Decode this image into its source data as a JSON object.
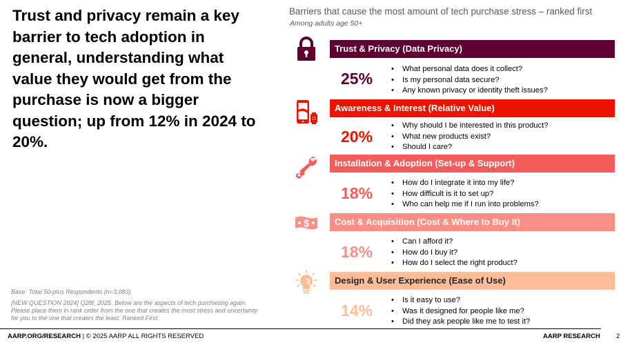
{
  "headline": "Trust and privacy remain a key barrier to tech adoption in general, understanding what value they would get from the purchase is now a bigger question; up from 12% in 2024 to 20%.",
  "right_panel": {
    "title": "Barriers that cause the most amount of tech purchase stress – ranked first",
    "subtitle": "Among adults age 50+",
    "barriers": [
      {
        "icon": "lock-icon",
        "color": "#5f0032",
        "label": "Trust & Privacy (Data Privacy)",
        "percent": "25%",
        "bullets": [
          "What personal data does it collect?",
          "Is my personal data secure?",
          "Any known privacy or identity theft issues?"
        ]
      },
      {
        "icon": "phone-watch-icon",
        "color": "#ec1300",
        "label": "Awareness & Interest (Relative Value)",
        "percent": "20%",
        "bullets": [
          "Why should I be interested in this product?",
          "What new products exist?",
          "Should I care?"
        ]
      },
      {
        "icon": "wrench-icon",
        "color": "#f45b5b",
        "label": "Installation & Adoption (Set-up & Support)",
        "percent": "18%",
        "bullets": [
          "How do I integrate it into my life?",
          "How difficult is it to set up?",
          "Who can help me if I run into problems?"
        ]
      },
      {
        "icon": "money-bill-icon",
        "color": "#fb8f86",
        "label": "Cost & Acquisition (Cost & Where to Buy It)",
        "percent": "18%",
        "bullets": [
          "Can I afford it?",
          "How do I buy it?",
          "How do I select the right product?"
        ]
      },
      {
        "icon": "lightbulb-icon",
        "color": "#fdbd99",
        "label": "Design & User Experience (Ease of Use)",
        "percent": "14%",
        "bullets": [
          "Is it easy to use?",
          "Was it designed for people like me?",
          "Did they ask people like me to test it?"
        ]
      }
    ]
  },
  "notes": {
    "base": "Base: Total 50-plus Respondents (n=3,083)",
    "question": "[NEW QUESTION 2024]  Q28f_2025. Below are the aspects of tech purchasing again.  Please place them in rank order from the one that creates the most stress and uncertainty for you to the one that creates the least. Ranked First."
  },
  "footer": {
    "site": "AARP.ORG/RESEARCH",
    "copyright": " | © 2025 AARP ALL RIGHTS RESERVED",
    "brand": "AARP RESEARCH",
    "page": "2"
  }
}
